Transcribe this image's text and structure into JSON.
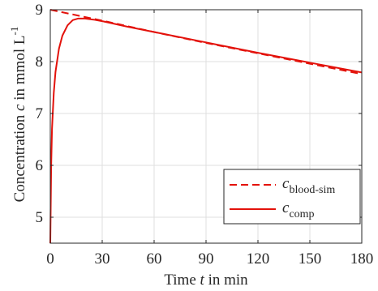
{
  "chart_data": {
    "type": "line",
    "xlabel": "Time t in min",
    "xlabel_parts": {
      "before": "Time ",
      "var": "t",
      "after": " in min"
    },
    "ylabel": "Concentration c in mmol L-1",
    "ylabel_parts": {
      "before": "Concentration ",
      "var": "c",
      "after": " in mmol L",
      "sup": "-1"
    },
    "xlim": [
      0,
      180
    ],
    "ylim": [
      4.5,
      9
    ],
    "xticks": [
      0,
      30,
      60,
      90,
      120,
      150,
      180
    ],
    "yticks": [
      5,
      6,
      7,
      8,
      9
    ],
    "grid": true,
    "legend_placement": "bottom-right",
    "series": [
      {
        "name": "c_blood-sim",
        "name_base": "c",
        "name_sub": "blood-sim",
        "style": "dashed",
        "color": "#e3120b",
        "x": [
          0,
          10,
          20,
          30,
          60,
          90,
          120,
          150,
          180
        ],
        "y": [
          9.0,
          8.93,
          8.86,
          8.79,
          8.57,
          8.36,
          8.16,
          7.96,
          7.76
        ]
      },
      {
        "name": "c_comp",
        "name_base": "c",
        "name_sub": "comp",
        "style": "solid",
        "color": "#e3120b",
        "x": [
          0,
          0.5,
          1,
          2,
          3,
          5,
          7,
          10,
          13,
          16,
          20,
          25,
          30,
          45,
          60,
          90,
          120,
          150,
          180
        ],
        "y": [
          4.5,
          6.0,
          6.7,
          7.4,
          7.8,
          8.25,
          8.5,
          8.7,
          8.8,
          8.83,
          8.83,
          8.81,
          8.78,
          8.67,
          8.57,
          8.37,
          8.17,
          7.98,
          7.79
        ]
      }
    ]
  }
}
